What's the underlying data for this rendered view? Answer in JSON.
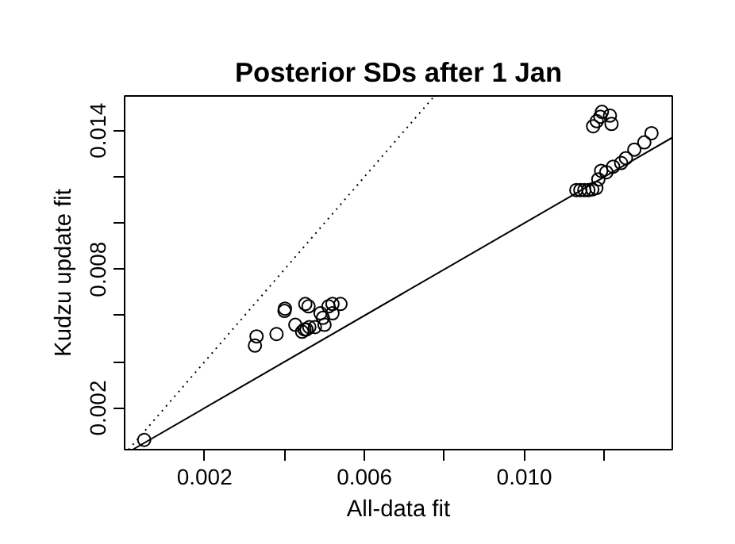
{
  "chart_data": {
    "type": "scatter",
    "title": "Posterior SDs after 1 Jan",
    "xlabel": "All-data fit",
    "ylabel": "Kudzu update fit",
    "xlim": [
      0.0,
      0.0137
    ],
    "ylim": [
      0.0002,
      0.0155
    ],
    "xticks": [
      0.002,
      {
        "value": 0.004,
        "label": null
      },
      0.006,
      {
        "value": 0.008,
        "label": null
      },
      {
        "value": 0.01,
        "label": "0.010"
      },
      {
        "value": 0.012,
        "label": null
      }
    ],
    "yticks": [
      0.002,
      {
        "value": 0.004,
        "label": null
      },
      {
        "value": 0.006,
        "label": null
      },
      0.008,
      {
        "value": 0.01,
        "label": null
      },
      {
        "value": 0.012,
        "label": null
      },
      0.014
    ],
    "grid": false,
    "series": [
      {
        "color": "#000000",
        "marker": "circle",
        "x": [
          0.00049,
          0.0033,
          0.00326,
          0.0038,
          0.004,
          0.00401,
          0.00427,
          0.00452,
          0.0046,
          0.0045,
          0.00444,
          0.00455,
          0.00462,
          0.00476,
          0.0049,
          0.005,
          0.0051,
          0.0052,
          0.0052,
          0.0054,
          0.00496,
          0.01172,
          0.01181,
          0.01194,
          0.0119,
          0.01214,
          0.01218,
          0.01318,
          0.013,
          0.01275,
          0.01254,
          0.01242,
          0.01222,
          0.01205,
          0.01192,
          0.01185,
          0.0113,
          0.0114,
          0.0115,
          0.0116,
          0.0117,
          0.0118
        ],
        "values": [
          0.00062,
          0.0051,
          0.0047,
          0.0052,
          0.0062,
          0.0063,
          0.0056,
          0.0065,
          0.0064,
          0.0054,
          0.0053,
          0.0054,
          0.0055,
          0.0055,
          0.0061,
          0.0056,
          0.0064,
          0.0065,
          0.0061,
          0.0065,
          0.0059,
          0.01419,
          0.01441,
          0.01481,
          0.0146,
          0.01465,
          0.01429,
          0.01389,
          0.01349,
          0.01318,
          0.01281,
          0.0126,
          0.01244,
          0.0122,
          0.01226,
          0.01189,
          0.01143,
          0.01143,
          0.01143,
          0.01143,
          0.01146,
          0.01152
        ]
      },
      {
        "type": "line",
        "color": "#000000",
        "line_style": "solid",
        "x": [
          0.0002,
          0.0137
        ],
        "values": [
          0.0002,
          0.0137
        ]
      },
      {
        "type": "line",
        "color": "#000000",
        "line_style": "dotted",
        "x": [
          0.0001,
          0.00775
        ],
        "values": [
          0.0002,
          0.0155
        ]
      }
    ]
  }
}
